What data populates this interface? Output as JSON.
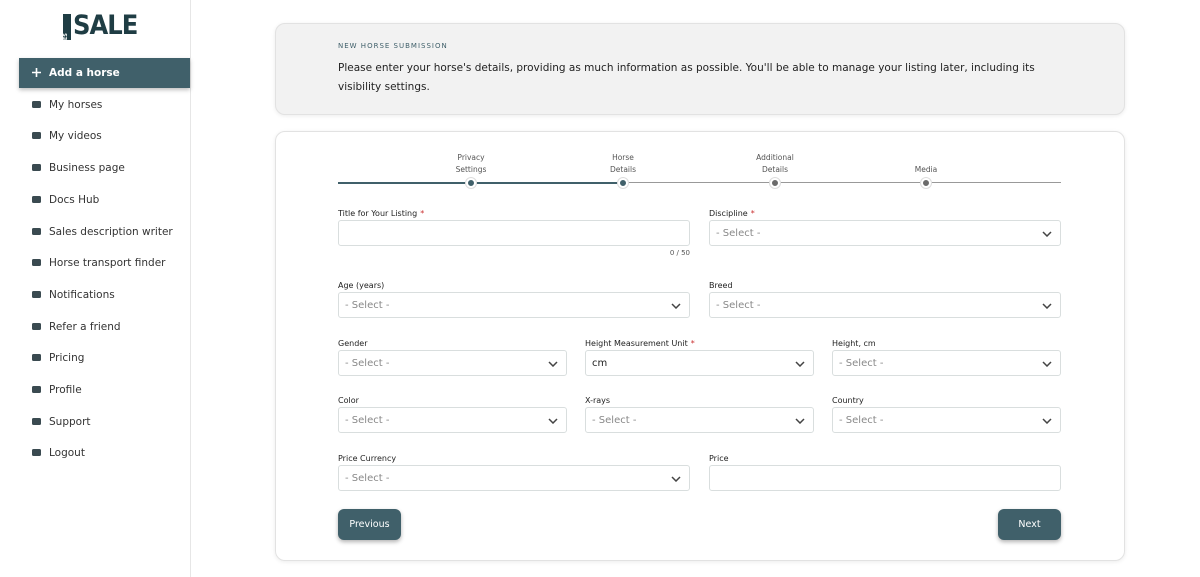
{
  "logo": {
    "small": "HORSES",
    "big": "SALE"
  },
  "nav": [
    "Add a horse",
    "My horses",
    "My videos",
    "Business page",
    "Docs Hub",
    "Sales description writer",
    "Horse transport finder",
    "Notifications",
    "Refer a friend",
    "Pricing",
    "Profile",
    "Support",
    "Logout"
  ],
  "header": {
    "label": "NEW HORSE SUBMISSION",
    "text": "Please enter your horse's details, providing as much information as possible. You'll be able to manage your listing later, including its visibility settings."
  },
  "steps": [
    "Privacy Settings",
    "Horse Details",
    "Additional Details",
    "Media"
  ],
  "required_mark": "*",
  "form": {
    "rows": [
      [
        {
          "label": "Title for Your Listing",
          "required": true,
          "kind": "input",
          "counter": "0 / 50"
        },
        {
          "label": "Discipline",
          "required": true,
          "kind": "select",
          "value": "- Select -"
        }
      ],
      [
        {
          "label": "Age (years)",
          "required": false,
          "kind": "select",
          "value": "- Select -"
        },
        {
          "label": "Breed",
          "required": false,
          "kind": "select",
          "value": "- Select -"
        }
      ],
      [
        {
          "label": "Gender",
          "required": false,
          "kind": "select",
          "value": "- Select -"
        },
        {
          "label": "Height Measurement Unit",
          "required": true,
          "kind": "select",
          "value": "cm"
        },
        {
          "label": "Height, cm",
          "required": false,
          "kind": "select",
          "value": "- Select -"
        }
      ],
      [
        {
          "label": "Color",
          "required": false,
          "kind": "select",
          "value": "- Select -"
        },
        {
          "label": "X-rays",
          "required": false,
          "kind": "select",
          "value": "- Select -"
        },
        {
          "label": "Country",
          "required": false,
          "kind": "select",
          "value": "- Select -"
        }
      ],
      [
        {
          "label": "Price Currency",
          "required": false,
          "kind": "select",
          "value": "- Select -"
        },
        {
          "label": "Price",
          "required": false,
          "kind": "input"
        }
      ]
    ]
  },
  "buttons": {
    "previous": "Previous",
    "next": "Next"
  }
}
